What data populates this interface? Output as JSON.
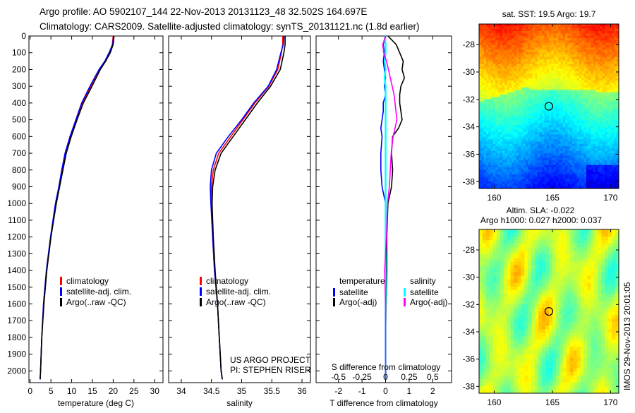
{
  "header": {
    "line1": "Argo profile: AO 5902107_144 22-Nov-2013 20131123_48 32.502S 164.697E",
    "line2": "Climatology: CARS2009. Satellite-adjusted climatology: synTS_20131121.nc (1.8d earlier)"
  },
  "side_stamp": "IMOS 29-Nov-2013 20:01:05",
  "colors": {
    "climatology": "#ff0000",
    "satellite": "#0000ff",
    "argo": "#000000",
    "sal_satellite": "#00ffff",
    "sal_argo": "#ff00ff"
  },
  "chart_data": [
    {
      "type": "line",
      "id": "temperature",
      "xlabel": "temperature (deg C)",
      "xlim": [
        -0.3,
        32
      ],
      "ylim": [
        2070,
        0
      ],
      "xticks": [
        "0",
        "5",
        "10",
        "15",
        "20",
        "25",
        "30"
      ],
      "yticks": [
        "0",
        "100",
        "200",
        "300",
        "400",
        "500",
        "600",
        "700",
        "800",
        "900",
        "1000",
        "1100",
        "1200",
        "1300",
        "1400",
        "1500",
        "1600",
        "1700",
        "1800",
        "1900",
        "2000"
      ],
      "depth": [
        0,
        50,
        100,
        150,
        200,
        250,
        300,
        400,
        500,
        600,
        700,
        800,
        900,
        1000,
        1200,
        1400,
        1600,
        1800,
        2000,
        2050
      ],
      "series": [
        {
          "name": "climatology",
          "values": [
            20,
            19.8,
            19.1,
            18.2,
            16.8,
            15.6,
            14.6,
            12.6,
            11.1,
            9.8,
            8.6,
            7.8,
            7.0,
            6.2,
            5.0,
            4.0,
            3.3,
            2.8,
            2.5,
            2.4
          ]
        },
        {
          "name": "satellite-adj. clim.",
          "values": [
            20.1,
            19.9,
            19.0,
            18.0,
            16.6,
            15.5,
            14.4,
            12.4,
            11.0,
            9.6,
            8.4,
            7.6,
            6.9,
            6.1,
            4.9,
            3.9,
            3.2,
            2.8,
            2.5,
            2.4
          ]
        },
        {
          "name": "Argo(..raw -QC)",
          "values": [
            20.2,
            20.0,
            19.3,
            18.2,
            16.9,
            15.9,
            14.9,
            12.8,
            11.3,
            9.9,
            8.7,
            7.9,
            7.1,
            6.3,
            5.0,
            4.0,
            3.3,
            2.8,
            2.5,
            2.4
          ]
        }
      ],
      "legend": [
        "climatology",
        "satellite-adj. clim.",
        "Argo(..raw -QC)"
      ]
    },
    {
      "type": "line",
      "id": "salinity",
      "xlabel": "salinity",
      "xlim": [
        33.79,
        36.14
      ],
      "ylim": [
        2070,
        0
      ],
      "xticks": [
        "34",
        "34.5",
        "35",
        "35.5",
        "36"
      ],
      "depth": [
        0,
        50,
        100,
        200,
        300,
        400,
        500,
        600,
        700,
        800,
        900,
        1000,
        1200,
        1400,
        1600,
        1800,
        2000,
        2050
      ],
      "series": [
        {
          "name": "climatology",
          "values": [
            35.68,
            35.68,
            35.66,
            35.6,
            35.45,
            35.22,
            35.02,
            34.82,
            34.62,
            34.53,
            34.5,
            34.5,
            34.52,
            34.55,
            34.6,
            34.63,
            34.66,
            34.68
          ]
        },
        {
          "name": "satellite-adj. clim.",
          "values": [
            35.7,
            35.69,
            35.65,
            35.58,
            35.44,
            35.2,
            35.0,
            34.78,
            34.58,
            34.5,
            34.48,
            34.49,
            34.52,
            34.55,
            34.6,
            34.63,
            34.66,
            34.68
          ]
        },
        {
          "name": "Argo(..raw -QC)",
          "values": [
            35.72,
            35.72,
            35.7,
            35.64,
            35.48,
            35.26,
            35.06,
            34.86,
            34.66,
            34.56,
            34.52,
            34.51,
            34.53,
            34.56,
            34.6,
            34.63,
            34.66,
            34.68
          ]
        }
      ],
      "legend": [
        "climatology",
        "satellite-adj. clim.",
        "Argo(..raw -QC)"
      ],
      "annotation": [
        "US ARGO PROJECT",
        "PI: STEPHEN RISER"
      ]
    },
    {
      "type": "line",
      "id": "difference",
      "xlabel": "T difference from climatology",
      "x2label": "S difference from climatology",
      "xlim": [
        -2.95,
        2.8
      ],
      "ylim": [
        2070,
        0
      ],
      "xticks": [
        "-2",
        "-1",
        "0",
        "1",
        "2"
      ],
      "x2ticks": [
        "-0.5",
        "-0.25",
        "0",
        "0.25",
        "0.5"
      ],
      "depth": [
        0,
        50,
        100,
        150,
        200,
        250,
        300,
        350,
        400,
        450,
        500,
        550,
        600,
        700,
        800,
        900,
        1000,
        1200,
        1400,
        1600,
        1800,
        2000,
        2050
      ],
      "series": [
        {
          "name": "temperature satellite",
          "values": [
            0,
            -0.1,
            -0.05,
            -0.1,
            -0.05,
            0,
            -0.05,
            0,
            -0.1,
            -0.1,
            -0.15,
            -0.2,
            -0.15,
            -0.2,
            -0.2,
            -0.15,
            0,
            0,
            0,
            0,
            0,
            0,
            0
          ]
        },
        {
          "name": "temperature Argo(-adj)",
          "values": [
            0.1,
            0.45,
            0.6,
            0.75,
            0.7,
            0.8,
            0.65,
            0.6,
            0.6,
            0.65,
            0.7,
            0.55,
            0.3,
            0.25,
            0.3,
            0.25,
            0.1,
            0.05,
            0.05,
            0.02,
            0,
            0,
            0
          ]
        },
        {
          "name": "salinity satellite",
          "values": [
            -0.01,
            0,
            0,
            -0.01,
            0,
            -0.01,
            0,
            0,
            0,
            0,
            0,
            0,
            0,
            0,
            0,
            0,
            0,
            0,
            0,
            0,
            0,
            0,
            0
          ]
        },
        {
          "name": "salinity Argo(-adj)",
          "values": [
            0,
            -0.03,
            -0.02,
            0.01,
            0.03,
            0.05,
            0.07,
            0.09,
            0.1,
            0.11,
            0.12,
            0.1,
            0.08,
            0.06,
            0.05,
            0.04,
            0.02,
            0.01,
            -0.01,
            0,
            0,
            0,
            0
          ]
        }
      ],
      "legend_headers": [
        "temperature",
        "salinity"
      ],
      "legend": [
        "satellite",
        "Argo(-adj)",
        "satellite",
        "Argo(-adj)"
      ]
    },
    {
      "type": "heatmap",
      "id": "sst-map",
      "title": "sat. SST: 19.5 Argo: 19.7",
      "xlim": [
        158.7,
        170.7
      ],
      "ylim": [
        -26.5,
        -38.5
      ],
      "xticks": [
        "160",
        "165",
        "170"
      ],
      "yticks": [
        "-28",
        "-30",
        "-32",
        "-34",
        "-36",
        "-38"
      ],
      "marker": {
        "lon": 164.697,
        "lat": -32.502
      }
    },
    {
      "type": "heatmap",
      "id": "sla-map",
      "title": "Altim. SLA: -0.022",
      "subtitle": "Argo h1000: 0.027 h2000: 0.037",
      "xlim": [
        158.7,
        170.7
      ],
      "ylim": [
        -26.5,
        -38.5
      ],
      "xticks": [
        "160",
        "165",
        "170"
      ],
      "yticks": [
        "-28",
        "-30",
        "-32",
        "-34",
        "-36",
        "-38"
      ],
      "marker": {
        "lon": 164.697,
        "lat": -32.502
      }
    }
  ]
}
